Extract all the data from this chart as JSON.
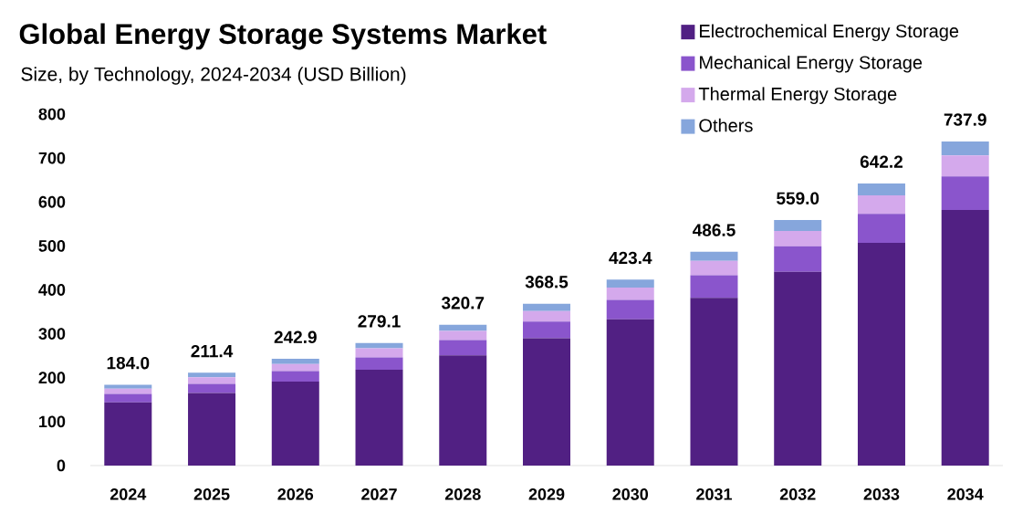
{
  "chart_data": {
    "type": "bar",
    "title": "Global Energy Storage Systems Market",
    "subtitle": "Size, by Technology, 2024-2034 (USD Billion)",
    "categories": [
      "2024",
      "2025",
      "2026",
      "2027",
      "2028",
      "2029",
      "2030",
      "2031",
      "2032",
      "2033",
      "2034"
    ],
    "stacked": true,
    "series": [
      {
        "name": "Electrochemical Energy Storage",
        "color": "#512083",
        "values": [
          144,
          165,
          191,
          218,
          251,
          290,
          333,
          382,
          441,
          507,
          582
        ]
      },
      {
        "name": "Mechanical Energy Storage",
        "color": "#8a55cc",
        "values": [
          19,
          21,
          24,
          28,
          34.5,
          38,
          44,
          51,
          58,
          66,
          76
        ]
      },
      {
        "name": "Thermal Energy Storage",
        "color": "#d4a9ec",
        "values": [
          12,
          15,
          16,
          21,
          21,
          23.5,
          28,
          33,
          35,
          42,
          48
        ]
      },
      {
        "name": "Others",
        "color": "#86a6dc",
        "values": [
          9,
          10.4,
          11.9,
          12.1,
          14.2,
          17,
          18.4,
          20.5,
          25,
          27.2,
          31.9
        ]
      }
    ],
    "totals": [
      "184.0",
      "211.4",
      "242.9",
      "279.1",
      "320.7",
      "368.5",
      "423.4",
      "486.5",
      "559.0",
      "642.2",
      "737.9"
    ],
    "ylim": [
      0,
      800
    ],
    "yticks": [
      0,
      100,
      200,
      300,
      400,
      500,
      600,
      700,
      800
    ],
    "legend": "top right"
  }
}
